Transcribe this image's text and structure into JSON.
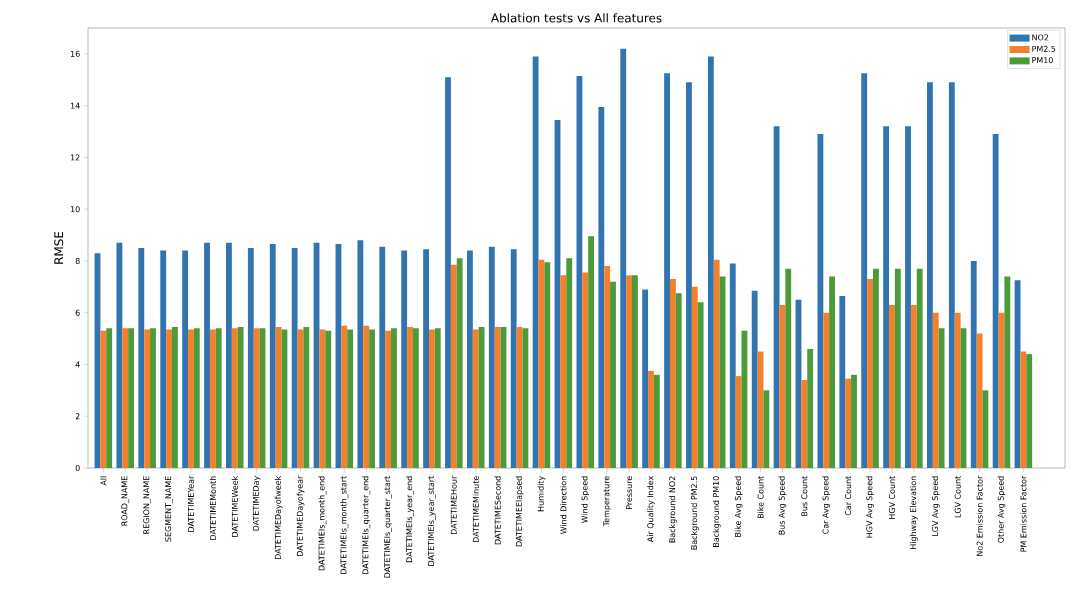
{
  "chart_data": {
    "type": "bar",
    "title": "Ablation tests vs All features",
    "ylabel": "RMSE",
    "categories": [
      "All",
      "ROAD_NAME",
      "REGION_NAME",
      "SEGMENT_NAME",
      "DATETIMEYear",
      "DATETIMEMonth",
      "DATETIMEWeek",
      "DATETIMEDay",
      "DATETIMEDayofweek",
      "DATETIMEDayofyear",
      "DATETIMEIs_month_end",
      "DATETIMEIs_month_start",
      "DATETIMEIs_quarter_end",
      "DATETIMEIs_quarter_start",
      "DATETIMEIs_year_end",
      "DATETIMEIs_year_start",
      "DATETIMEHour",
      "DATETIMEMinute",
      "DATETIMESecond",
      "DATETIMEElapsed",
      "Humidity",
      "Wind Direction",
      "Wind Speed",
      "Temperature",
      "Pressure",
      "Air Quality Index",
      "Background NO2",
      "Background PM2.5",
      "Background PM10",
      "Bike Avg Speed",
      "Bike Count",
      "Bus Avg Speed",
      "Bus Count",
      "Car Avg Speed",
      "Car Count",
      "HGV Avg Speed",
      "HGV Count",
      "Highway Elevation",
      "LGV Avg Speed",
      "LGV Count",
      "No2 Emission Factor",
      "Other Avg Speed",
      "PM Emission Factor"
    ],
    "series": [
      {
        "name": "NO2",
        "color": "#3274b0",
        "values": [
          8.3,
          8.7,
          8.5,
          8.4,
          8.4,
          8.7,
          8.7,
          8.5,
          8.65,
          8.5,
          8.7,
          8.65,
          8.8,
          8.55,
          8.4,
          8.45,
          15.1,
          8.4,
          8.55,
          8.45,
          15.9,
          13.45,
          15.15,
          13.95,
          16.2,
          6.9,
          15.25,
          14.9,
          15.9,
          7.9,
          6.85,
          13.2,
          6.5,
          12.9,
          6.65,
          15.25,
          13.2,
          13.2,
          14.9,
          14.9,
          8.0,
          12.9,
          7.25
        ]
      },
      {
        "name": "PM2.5",
        "color": "#f4802a",
        "values": [
          5.3,
          5.4,
          5.35,
          5.35,
          5.35,
          5.35,
          5.4,
          5.4,
          5.45,
          5.35,
          5.35,
          5.5,
          5.5,
          5.3,
          5.45,
          5.35,
          7.85,
          5.35,
          5.45,
          5.45,
          8.05,
          7.45,
          7.55,
          7.8,
          7.45,
          3.75,
          7.3,
          7.0,
          8.05,
          3.55,
          4.5,
          6.3,
          3.4,
          6.0,
          3.45,
          7.3,
          6.3,
          6.3,
          6.0,
          6.0,
          5.2,
          6.0,
          4.5
        ]
      },
      {
        "name": "PM10",
        "color": "#4c9a3a",
        "values": [
          5.4,
          5.4,
          5.4,
          5.45,
          5.4,
          5.4,
          5.45,
          5.4,
          5.35,
          5.45,
          5.3,
          5.35,
          5.35,
          5.4,
          5.4,
          5.4,
          8.1,
          5.45,
          5.45,
          5.4,
          7.95,
          8.1,
          8.95,
          7.2,
          7.45,
          3.6,
          6.75,
          6.4,
          7.4,
          5.3,
          3.0,
          7.7,
          4.6,
          7.4,
          3.6,
          7.7,
          7.7,
          7.7,
          5.4,
          5.4,
          3.0,
          7.4,
          4.4
        ]
      }
    ],
    "ylim": [
      0,
      17
    ],
    "yticks": [
      0,
      2,
      4,
      6,
      8,
      10,
      12,
      14,
      16
    ],
    "legend": "top right"
  }
}
